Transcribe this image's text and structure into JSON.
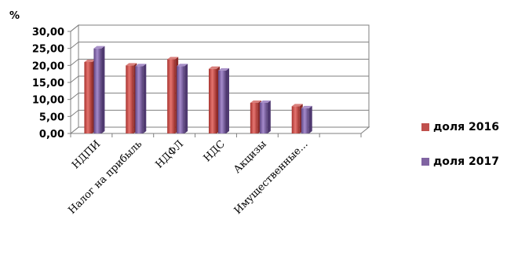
{
  "chart_data": {
    "type": "bar",
    "ylabel": "%",
    "ylim": [
      0,
      30
    ],
    "yticks": [
      "0,00",
      "5,00",
      "10,00",
      "15,00",
      "20,00",
      "25,00",
      "30,00"
    ],
    "categories": [
      "НДПИ",
      "Налог на прибыль",
      "НДФЛ",
      "НДС",
      "Акцизы",
      "Имущественные..."
    ],
    "series": [
      {
        "name": "доля 2016",
        "color": "#c0504d",
        "values": [
          21.0,
          20.0,
          21.8,
          19.0,
          9.0,
          8.0
        ]
      },
      {
        "name": "доля 2017",
        "color": "#8064a2",
        "values": [
          25.0,
          19.8,
          19.8,
          18.5,
          9.0,
          7.4
        ]
      }
    ],
    "grid": true,
    "legend_position": "right"
  }
}
